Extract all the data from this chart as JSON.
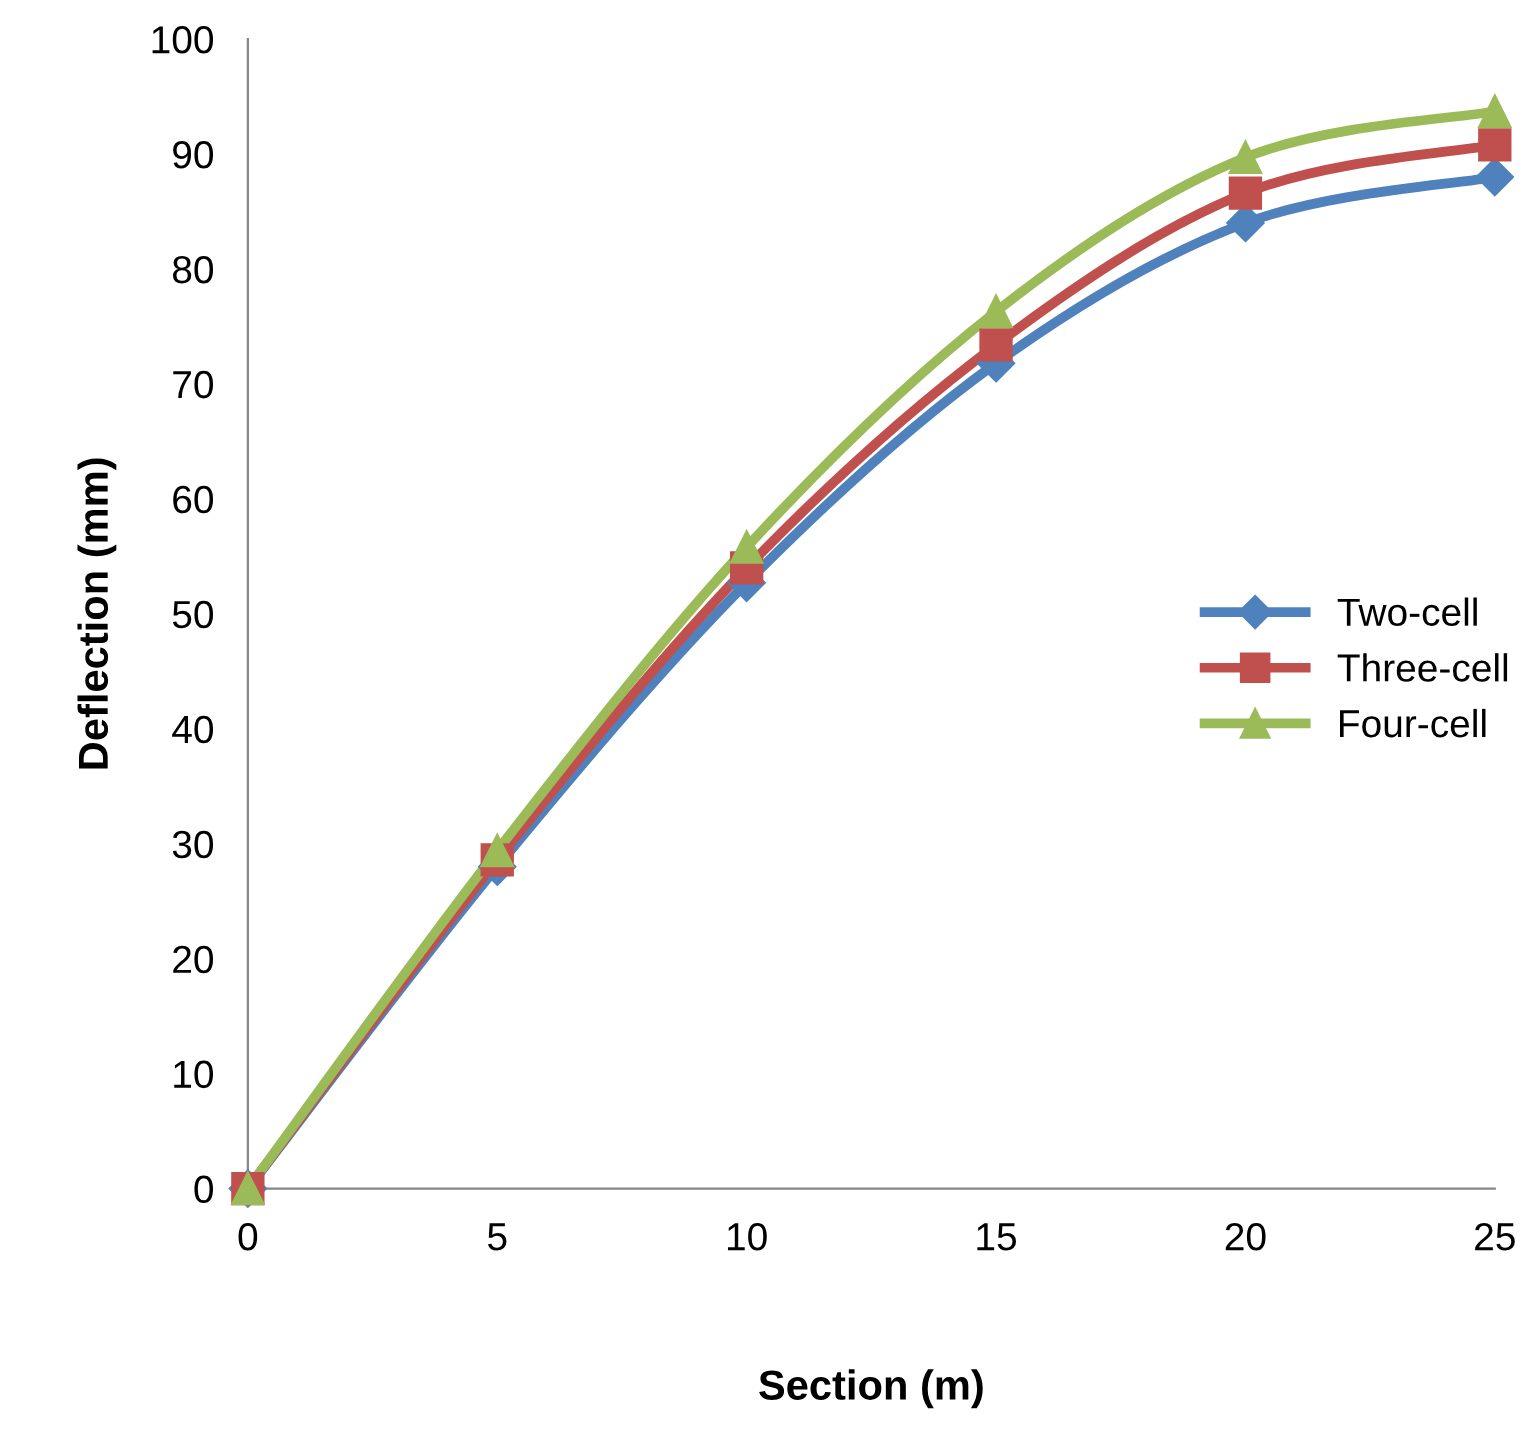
{
  "chart_data": {
    "type": "line",
    "xlabel": "Section (m)",
    "ylabel": "Deflection (mm)",
    "x": [
      0,
      5,
      10,
      15,
      20,
      25
    ],
    "series": [
      {
        "name": "Two-cell",
        "color": "#4f81bd",
        "marker": "diamond",
        "values": [
          0,
          28,
          52.7,
          71.8,
          84,
          88
        ]
      },
      {
        "name": "Three-cell",
        "color": "#c0504d",
        "marker": "square",
        "values": [
          0,
          28.6,
          54,
          73.4,
          86.6,
          90.8
        ]
      },
      {
        "name": "Four-cell",
        "color": "#9bbb59",
        "marker": "triangle",
        "values": [
          0,
          29.4,
          55.8,
          76.3,
          89.7,
          93.7
        ]
      }
    ],
    "xlim": [
      0,
      25
    ],
    "xticks": [
      0,
      5,
      10,
      15,
      20,
      25
    ],
    "ylim": [
      0,
      100
    ],
    "yticks": [
      0,
      10,
      20,
      30,
      40,
      50,
      60,
      70,
      80,
      90,
      100
    ],
    "grid": false,
    "legend": "right",
    "line_style": "solid"
  }
}
